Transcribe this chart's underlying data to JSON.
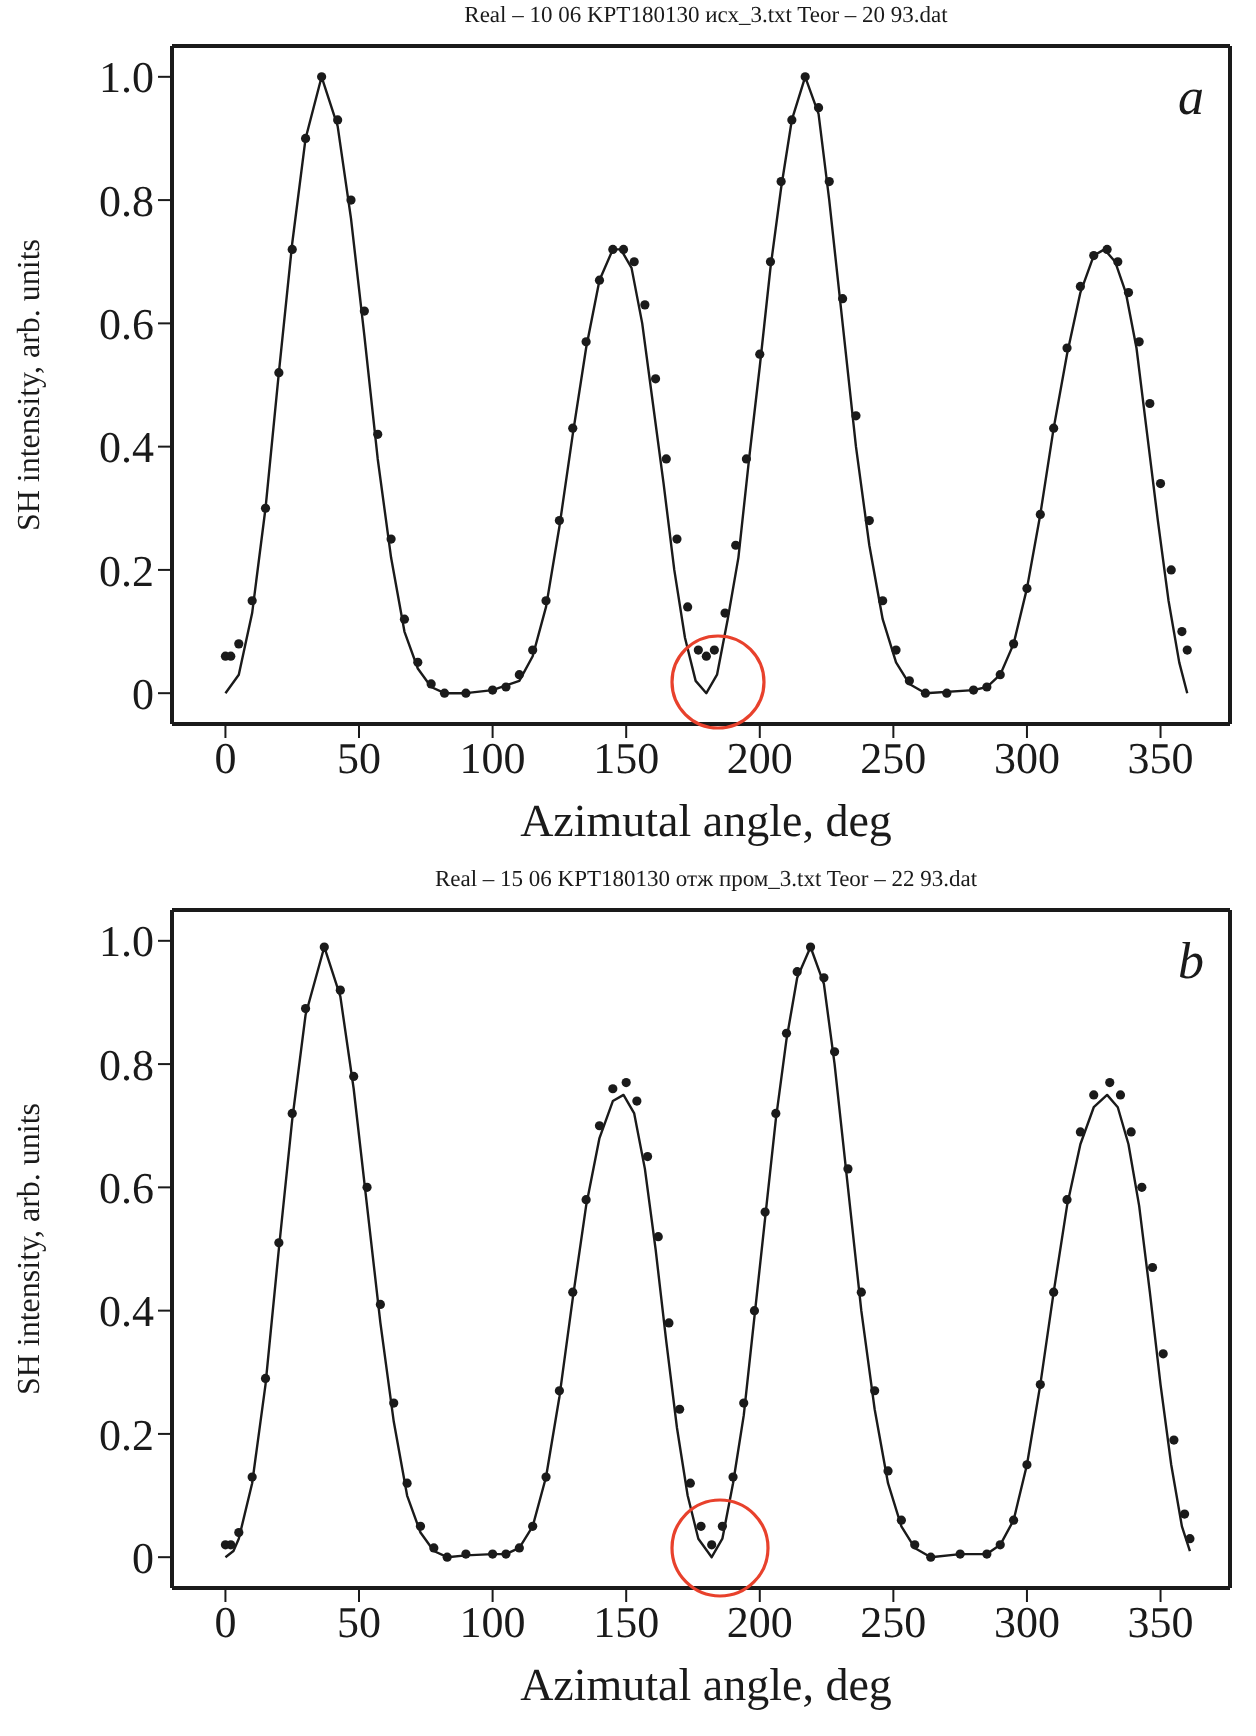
{
  "chart_data": [
    {
      "type": "scatter",
      "title": "Real – 10 06 KPT180130 исх_3.txt Teor – 20 93.dat",
      "xlabel": "Azimutal angle, deg",
      "ylabel": "SH intensity, arb. units",
      "annotations": [
        "a"
      ],
      "xlim": [
        -20,
        376
      ],
      "xticks": [
        0,
        50,
        100,
        150,
        200,
        250,
        300,
        350
      ],
      "ylim": [
        -0.05,
        1.05
      ],
      "yticks": [
        0,
        0.2,
        0.4,
        0.6,
        0.8,
        {
          "value": 1,
          "label": "1.0"
        }
      ],
      "grid": false,
      "legend": false,
      "series": [
        {
          "marker": "circle",
          "color": "#1a1a1a",
          "x": [
            0,
            2,
            5,
            10,
            15,
            20,
            25,
            30,
            36,
            42,
            47,
            52,
            57,
            62,
            67,
            72,
            77,
            82,
            90,
            100,
            105,
            110,
            115,
            120,
            125,
            130,
            135,
            140,
            145,
            149,
            153,
            157,
            161,
            165,
            169,
            173,
            177,
            180,
            183,
            187,
            191,
            195,
            200,
            204,
            208,
            212,
            217,
            222,
            226,
            231,
            236,
            241,
            246,
            251,
            256,
            262,
            270,
            280,
            285,
            290,
            295,
            300,
            305,
            310,
            315,
            320,
            325,
            330,
            334,
            338,
            342,
            346,
            350,
            354,
            358,
            360
          ],
          "values": [
            0.06,
            0.06,
            0.08,
            0.15,
            0.3,
            0.52,
            0.72,
            0.9,
            1.0,
            0.93,
            0.8,
            0.62,
            0.42,
            0.25,
            0.12,
            0.05,
            0.015,
            0.0,
            0.0,
            0.005,
            0.01,
            0.03,
            0.07,
            0.15,
            0.28,
            0.43,
            0.57,
            0.67,
            0.72,
            0.72,
            0.7,
            0.63,
            0.51,
            0.38,
            0.25,
            0.14,
            0.07,
            0.06,
            0.07,
            0.13,
            0.24,
            0.38,
            0.55,
            0.7,
            0.83,
            0.93,
            1.0,
            0.95,
            0.83,
            0.64,
            0.45,
            0.28,
            0.15,
            0.07,
            0.02,
            0.0,
            0.0,
            0.005,
            0.01,
            0.03,
            0.08,
            0.17,
            0.29,
            0.43,
            0.56,
            0.66,
            0.71,
            0.72,
            0.7,
            0.65,
            0.57,
            0.47,
            0.34,
            0.2,
            0.1,
            0.07
          ]
        },
        {
          "type": "line",
          "color": "#1a1a1a",
          "x": [
            0,
            5,
            10,
            15,
            20,
            25,
            30,
            36,
            42,
            47,
            52,
            57,
            62,
            67,
            72,
            77,
            82,
            90,
            100,
            110,
            115,
            120,
            125,
            130,
            135,
            140,
            145,
            148,
            152,
            156,
            160,
            164,
            168,
            172,
            176,
            180,
            184,
            188,
            192,
            196,
            200,
            204,
            208,
            212,
            217,
            222,
            226,
            231,
            236,
            241,
            246,
            251,
            256,
            262,
            280,
            285,
            290,
            295,
            300,
            305,
            310,
            315,
            320,
            325,
            329,
            333,
            337,
            341,
            345,
            349,
            353,
            357,
            360
          ],
          "values": [
            0,
            0.03,
            0.13,
            0.3,
            0.52,
            0.73,
            0.9,
            1.0,
            0.92,
            0.77,
            0.58,
            0.38,
            0.22,
            0.1,
            0.04,
            0.01,
            0.0,
            0.0,
            0.005,
            0.02,
            0.06,
            0.14,
            0.27,
            0.42,
            0.56,
            0.67,
            0.72,
            0.72,
            0.69,
            0.6,
            0.47,
            0.34,
            0.2,
            0.09,
            0.02,
            0.0,
            0.03,
            0.12,
            0.22,
            0.38,
            0.53,
            0.69,
            0.82,
            0.93,
            1.0,
            0.94,
            0.8,
            0.6,
            0.4,
            0.24,
            0.12,
            0.05,
            0.015,
            0.0,
            0.005,
            0.01,
            0.03,
            0.08,
            0.17,
            0.29,
            0.43,
            0.55,
            0.65,
            0.71,
            0.72,
            0.7,
            0.65,
            0.56,
            0.42,
            0.28,
            0.15,
            0.05,
            0.0
          ]
        }
      ]
    },
    {
      "type": "scatter",
      "title": "Real – 15 06 KPT180130 отж пром_3.txt Teor – 22 93.dat",
      "xlabel": "Azimutal angle, deg",
      "ylabel": "SH intensity, arb. units",
      "annotations": [
        "b"
      ],
      "xlim": [
        -20,
        376
      ],
      "xticks": [
        0,
        50,
        100,
        150,
        200,
        250,
        300,
        350
      ],
      "ylim": [
        -0.05,
        1.05
      ],
      "yticks": [
        0,
        0.2,
        0.4,
        0.6,
        0.8,
        {
          "value": 1,
          "label": "1.0"
        }
      ],
      "grid": false,
      "legend": false,
      "series": [
        {
          "marker": "circle",
          "color": "#1a1a1a",
          "x": [
            0,
            2,
            5,
            10,
            15,
            20,
            25,
            30,
            37,
            43,
            48,
            53,
            58,
            63,
            68,
            73,
            78,
            83,
            90,
            100,
            105,
            110,
            115,
            120,
            125,
            130,
            135,
            140,
            145,
            150,
            154,
            158,
            162,
            166,
            170,
            174,
            178,
            182,
            186,
            190,
            194,
            198,
            202,
            206,
            210,
            214,
            219,
            224,
            228,
            233,
            238,
            243,
            248,
            253,
            258,
            264,
            275,
            285,
            290,
            295,
            300,
            305,
            310,
            315,
            320,
            325,
            331,
            335,
            339,
            343,
            347,
            351,
            355,
            359,
            361
          ],
          "values": [
            0.02,
            0.02,
            0.04,
            0.13,
            0.29,
            0.51,
            0.72,
            0.89,
            0.99,
            0.92,
            0.78,
            0.6,
            0.41,
            0.25,
            0.12,
            0.05,
            0.015,
            0.0,
            0.005,
            0.005,
            0.005,
            0.015,
            0.05,
            0.13,
            0.27,
            0.43,
            0.58,
            0.7,
            0.76,
            0.77,
            0.74,
            0.65,
            0.52,
            0.38,
            0.24,
            0.12,
            0.05,
            0.02,
            0.05,
            0.13,
            0.25,
            0.4,
            0.56,
            0.72,
            0.85,
            0.95,
            0.99,
            0.94,
            0.82,
            0.63,
            0.43,
            0.27,
            0.14,
            0.06,
            0.02,
            0.0,
            0.005,
            0.005,
            0.02,
            0.06,
            0.15,
            0.28,
            0.43,
            0.58,
            0.69,
            0.75,
            0.77,
            0.75,
            0.69,
            0.6,
            0.47,
            0.33,
            0.19,
            0.07,
            0.03
          ]
        },
        {
          "type": "line",
          "color": "#1a1a1a",
          "x": [
            0,
            3,
            5,
            10,
            15,
            20,
            25,
            30,
            37,
            43,
            48,
            53,
            58,
            63,
            68,
            73,
            78,
            83,
            90,
            100,
            105,
            110,
            115,
            120,
            125,
            130,
            135,
            140,
            145,
            149,
            153,
            157,
            161,
            165,
            169,
            173,
            177,
            182,
            186,
            190,
            194,
            198,
            202,
            206,
            210,
            214,
            219,
            224,
            228,
            233,
            238,
            243,
            248,
            253,
            258,
            264,
            275,
            285,
            290,
            295,
            300,
            305,
            310,
            315,
            320,
            325,
            330,
            334,
            338,
            342,
            346,
            350,
            354,
            358,
            361
          ],
          "values": [
            0,
            0.01,
            0.03,
            0.12,
            0.28,
            0.5,
            0.71,
            0.88,
            0.99,
            0.91,
            0.76,
            0.57,
            0.38,
            0.22,
            0.1,
            0.04,
            0.01,
            0.0,
            0.003,
            0.005,
            0.005,
            0.015,
            0.05,
            0.13,
            0.26,
            0.42,
            0.57,
            0.68,
            0.74,
            0.75,
            0.72,
            0.63,
            0.5,
            0.35,
            0.21,
            0.1,
            0.03,
            0.0,
            0.03,
            0.12,
            0.23,
            0.39,
            0.55,
            0.71,
            0.84,
            0.94,
            0.99,
            0.93,
            0.8,
            0.6,
            0.4,
            0.24,
            0.12,
            0.05,
            0.015,
            0.0,
            0.005,
            0.005,
            0.02,
            0.06,
            0.15,
            0.28,
            0.43,
            0.57,
            0.67,
            0.73,
            0.75,
            0.73,
            0.67,
            0.57,
            0.43,
            0.28,
            0.15,
            0.05,
            0.01
          ]
        }
      ]
    }
  ]
}
